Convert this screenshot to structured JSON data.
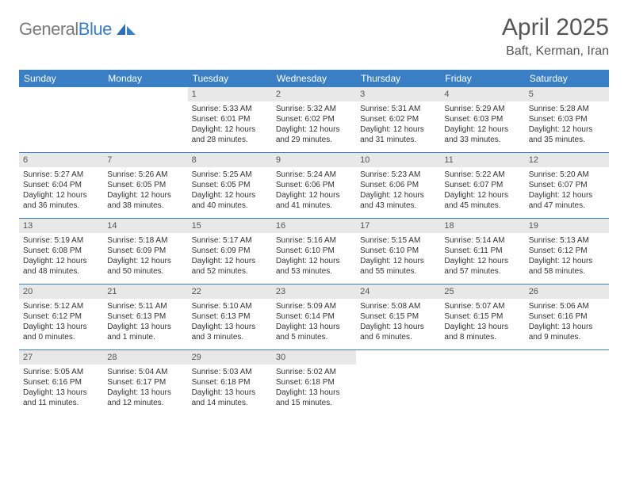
{
  "brand": {
    "part1": "General",
    "part2": "Blue"
  },
  "title": "April 2025",
  "location": "Baft, Kerman, Iran",
  "colors": {
    "header_bg": "#3a7fc4",
    "daynum_bg": "#e8e8e8",
    "row_border": "#3a7fc4",
    "text": "#333333",
    "title_text": "#555555"
  },
  "weekdays": [
    "Sunday",
    "Monday",
    "Tuesday",
    "Wednesday",
    "Thursday",
    "Friday",
    "Saturday"
  ],
  "weeks": [
    [
      null,
      null,
      {
        "d": "1",
        "sr": "Sunrise: 5:33 AM",
        "ss": "Sunset: 6:01 PM",
        "dl1": "Daylight: 12 hours",
        "dl2": "and 28 minutes."
      },
      {
        "d": "2",
        "sr": "Sunrise: 5:32 AM",
        "ss": "Sunset: 6:02 PM",
        "dl1": "Daylight: 12 hours",
        "dl2": "and 29 minutes."
      },
      {
        "d": "3",
        "sr": "Sunrise: 5:31 AM",
        "ss": "Sunset: 6:02 PM",
        "dl1": "Daylight: 12 hours",
        "dl2": "and 31 minutes."
      },
      {
        "d": "4",
        "sr": "Sunrise: 5:29 AM",
        "ss": "Sunset: 6:03 PM",
        "dl1": "Daylight: 12 hours",
        "dl2": "and 33 minutes."
      },
      {
        "d": "5",
        "sr": "Sunrise: 5:28 AM",
        "ss": "Sunset: 6:03 PM",
        "dl1": "Daylight: 12 hours",
        "dl2": "and 35 minutes."
      }
    ],
    [
      {
        "d": "6",
        "sr": "Sunrise: 5:27 AM",
        "ss": "Sunset: 6:04 PM",
        "dl1": "Daylight: 12 hours",
        "dl2": "and 36 minutes."
      },
      {
        "d": "7",
        "sr": "Sunrise: 5:26 AM",
        "ss": "Sunset: 6:05 PM",
        "dl1": "Daylight: 12 hours",
        "dl2": "and 38 minutes."
      },
      {
        "d": "8",
        "sr": "Sunrise: 5:25 AM",
        "ss": "Sunset: 6:05 PM",
        "dl1": "Daylight: 12 hours",
        "dl2": "and 40 minutes."
      },
      {
        "d": "9",
        "sr": "Sunrise: 5:24 AM",
        "ss": "Sunset: 6:06 PM",
        "dl1": "Daylight: 12 hours",
        "dl2": "and 41 minutes."
      },
      {
        "d": "10",
        "sr": "Sunrise: 5:23 AM",
        "ss": "Sunset: 6:06 PM",
        "dl1": "Daylight: 12 hours",
        "dl2": "and 43 minutes."
      },
      {
        "d": "11",
        "sr": "Sunrise: 5:22 AM",
        "ss": "Sunset: 6:07 PM",
        "dl1": "Daylight: 12 hours",
        "dl2": "and 45 minutes."
      },
      {
        "d": "12",
        "sr": "Sunrise: 5:20 AM",
        "ss": "Sunset: 6:07 PM",
        "dl1": "Daylight: 12 hours",
        "dl2": "and 47 minutes."
      }
    ],
    [
      {
        "d": "13",
        "sr": "Sunrise: 5:19 AM",
        "ss": "Sunset: 6:08 PM",
        "dl1": "Daylight: 12 hours",
        "dl2": "and 48 minutes."
      },
      {
        "d": "14",
        "sr": "Sunrise: 5:18 AM",
        "ss": "Sunset: 6:09 PM",
        "dl1": "Daylight: 12 hours",
        "dl2": "and 50 minutes."
      },
      {
        "d": "15",
        "sr": "Sunrise: 5:17 AM",
        "ss": "Sunset: 6:09 PM",
        "dl1": "Daylight: 12 hours",
        "dl2": "and 52 minutes."
      },
      {
        "d": "16",
        "sr": "Sunrise: 5:16 AM",
        "ss": "Sunset: 6:10 PM",
        "dl1": "Daylight: 12 hours",
        "dl2": "and 53 minutes."
      },
      {
        "d": "17",
        "sr": "Sunrise: 5:15 AM",
        "ss": "Sunset: 6:10 PM",
        "dl1": "Daylight: 12 hours",
        "dl2": "and 55 minutes."
      },
      {
        "d": "18",
        "sr": "Sunrise: 5:14 AM",
        "ss": "Sunset: 6:11 PM",
        "dl1": "Daylight: 12 hours",
        "dl2": "and 57 minutes."
      },
      {
        "d": "19",
        "sr": "Sunrise: 5:13 AM",
        "ss": "Sunset: 6:12 PM",
        "dl1": "Daylight: 12 hours",
        "dl2": "and 58 minutes."
      }
    ],
    [
      {
        "d": "20",
        "sr": "Sunrise: 5:12 AM",
        "ss": "Sunset: 6:12 PM",
        "dl1": "Daylight: 13 hours",
        "dl2": "and 0 minutes."
      },
      {
        "d": "21",
        "sr": "Sunrise: 5:11 AM",
        "ss": "Sunset: 6:13 PM",
        "dl1": "Daylight: 13 hours",
        "dl2": "and 1 minute."
      },
      {
        "d": "22",
        "sr": "Sunrise: 5:10 AM",
        "ss": "Sunset: 6:13 PM",
        "dl1": "Daylight: 13 hours",
        "dl2": "and 3 minutes."
      },
      {
        "d": "23",
        "sr": "Sunrise: 5:09 AM",
        "ss": "Sunset: 6:14 PM",
        "dl1": "Daylight: 13 hours",
        "dl2": "and 5 minutes."
      },
      {
        "d": "24",
        "sr": "Sunrise: 5:08 AM",
        "ss": "Sunset: 6:15 PM",
        "dl1": "Daylight: 13 hours",
        "dl2": "and 6 minutes."
      },
      {
        "d": "25",
        "sr": "Sunrise: 5:07 AM",
        "ss": "Sunset: 6:15 PM",
        "dl1": "Daylight: 13 hours",
        "dl2": "and 8 minutes."
      },
      {
        "d": "26",
        "sr": "Sunrise: 5:06 AM",
        "ss": "Sunset: 6:16 PM",
        "dl1": "Daylight: 13 hours",
        "dl2": "and 9 minutes."
      }
    ],
    [
      {
        "d": "27",
        "sr": "Sunrise: 5:05 AM",
        "ss": "Sunset: 6:16 PM",
        "dl1": "Daylight: 13 hours",
        "dl2": "and 11 minutes."
      },
      {
        "d": "28",
        "sr": "Sunrise: 5:04 AM",
        "ss": "Sunset: 6:17 PM",
        "dl1": "Daylight: 13 hours",
        "dl2": "and 12 minutes."
      },
      {
        "d": "29",
        "sr": "Sunrise: 5:03 AM",
        "ss": "Sunset: 6:18 PM",
        "dl1": "Daylight: 13 hours",
        "dl2": "and 14 minutes."
      },
      {
        "d": "30",
        "sr": "Sunrise: 5:02 AM",
        "ss": "Sunset: 6:18 PM",
        "dl1": "Daylight: 13 hours",
        "dl2": "and 15 minutes."
      },
      null,
      null,
      null
    ]
  ]
}
